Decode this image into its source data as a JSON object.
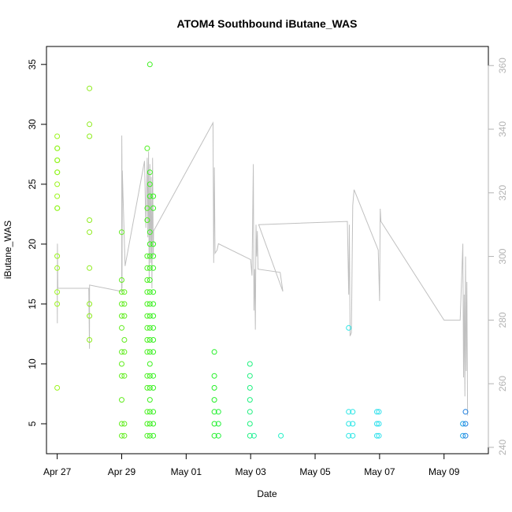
{
  "chart_data": {
    "type": "scatter",
    "title": "ATOM4 Southbound iButane_WAS",
    "xlabel": "Date",
    "ylabel": "iButane_WAS",
    "xlim": [
      "2016-04-26T16:00",
      "2016-05-10T09:00"
    ],
    "ylim": [
      2.5,
      36.5
    ],
    "y2lim": [
      238,
      366
    ],
    "x_ticks": [
      {
        "date": "2016-04-27",
        "label": "Apr 27"
      },
      {
        "date": "2016-04-29",
        "label": "Apr 29"
      },
      {
        "date": "2016-05-01",
        "label": "May 01"
      },
      {
        "date": "2016-05-03",
        "label": "May 03"
      },
      {
        "date": "2016-05-05",
        "label": "May 05"
      },
      {
        "date": "2016-05-07",
        "label": "May 07"
      },
      {
        "date": "2016-05-09",
        "label": "May 09"
      }
    ],
    "y_ticks": [
      5,
      10,
      15,
      20,
      25,
      30,
      35
    ],
    "y2_ticks": [
      240,
      260,
      280,
      300,
      320,
      340,
      360
    ],
    "grid": false,
    "legend": "none",
    "scatter_series": [
      {
        "color": "#9cf51e",
        "x": "2016-04-27T00:00",
        "y": [
          29,
          28,
          27,
          26,
          25,
          24,
          23,
          19,
          18,
          16,
          15,
          8
        ]
      },
      {
        "color": "#8ff51e",
        "x": "2016-04-27T00:05",
        "y": [
          28,
          27,
          26,
          23
        ]
      },
      {
        "color": "#8fec1e",
        "x": "2016-04-28T00:00",
        "y": [
          33,
          30,
          29,
          22,
          21,
          18,
          15,
          14,
          12
        ]
      },
      {
        "color": "#61ec1e",
        "x": "2016-04-29T00:00",
        "y": [
          21,
          17,
          16,
          15,
          14,
          13,
          11,
          10,
          9,
          7,
          5,
          4
        ]
      },
      {
        "color": "#61ec1e",
        "x": "2016-04-29T02:00",
        "y": [
          16,
          15,
          14,
          12,
          11,
          9,
          5,
          4
        ]
      },
      {
        "color": "#4ef01e",
        "x": "2016-04-29T19:00",
        "y": [
          28,
          23,
          22,
          19,
          18,
          17,
          16,
          15,
          14,
          13,
          12,
          11,
          9,
          8,
          6,
          5,
          4
        ]
      },
      {
        "color": "#3df01e",
        "x": "2016-04-29T21:00",
        "y": [
          35,
          26,
          25,
          24,
          21,
          20,
          19,
          18,
          17,
          16,
          15,
          14,
          13,
          12,
          11,
          10,
          9,
          8,
          7,
          6,
          5,
          4
        ]
      },
      {
        "color": "#33f01e",
        "x": "2016-04-29T23:30",
        "y": [
          24,
          23,
          20,
          19,
          18,
          16,
          15,
          14,
          13,
          12,
          11,
          9,
          8,
          6,
          5,
          4
        ]
      },
      {
        "color": "#22f025",
        "x": "2016-05-01T21:00",
        "y": [
          11,
          9,
          8,
          7,
          6,
          5,
          4
        ]
      },
      {
        "color": "#22f03b",
        "x": "2016-05-02T00:00",
        "y": [
          6,
          5,
          4
        ]
      },
      {
        "color": "#1ef07f",
        "x": "2016-05-02T23:30",
        "y": [
          10,
          9,
          8,
          7,
          6,
          5,
          4
        ]
      },
      {
        "color": "#1ef09d",
        "x": "2016-05-03T02:30",
        "y": [
          4
        ]
      },
      {
        "color": "#1ef0c4",
        "x": "2016-05-03T22:30",
        "y": [
          4
        ]
      },
      {
        "color": "#2ae6e6",
        "x": "2016-05-06T01:00",
        "y": [
          13,
          6,
          5,
          4
        ]
      },
      {
        "color": "#2ae6e6",
        "x": "2016-05-06T04:00",
        "y": [
          6,
          5,
          4
        ]
      },
      {
        "color": "#2ae0ec",
        "x": "2016-05-06T22:00",
        "y": [
          6,
          5,
          4
        ]
      },
      {
        "color": "#2ae0ec",
        "x": "2016-05-06T23:30",
        "y": [
          6,
          5,
          4
        ]
      },
      {
        "color": "#1ea6e6",
        "x": "2016-05-09T14:00",
        "y": [
          5,
          4
        ]
      },
      {
        "color": "#1e7fe0",
        "x": "2016-05-09T16:00",
        "y": [
          6,
          5,
          4
        ]
      }
    ],
    "line_series": {
      "color": "#c0c0c0",
      "axis": "right",
      "points": [
        [
          "2016-04-27T00:00",
          290
        ],
        [
          "2016-04-27T00:05",
          279
        ],
        [
          "2016-04-27T00:10",
          304
        ],
        [
          "2016-04-27T00:30",
          290
        ],
        [
          "2016-04-27T23:30",
          290
        ],
        [
          "2016-04-28T00:00",
          271
        ],
        [
          "2016-04-28T00:05",
          291
        ],
        [
          "2016-04-29T00:00",
          289
        ],
        [
          "2016-04-29T00:05",
          338
        ],
        [
          "2016-04-29T00:10",
          331
        ],
        [
          "2016-04-29T00:15",
          290
        ],
        [
          "2016-04-29T00:30",
          327
        ],
        [
          "2016-04-29T01:00",
          319
        ],
        [
          "2016-04-29T02:30",
          297
        ],
        [
          "2016-04-29T17:00",
          330
        ],
        [
          "2016-04-29T18:00",
          309
        ],
        [
          "2016-04-29T19:00",
          331
        ],
        [
          "2016-04-29T19:30",
          306
        ],
        [
          "2016-04-29T20:00",
          333
        ],
        [
          "2016-04-29T20:30",
          292
        ],
        [
          "2016-04-29T21:00",
          329
        ],
        [
          "2016-04-29T21:30",
          298
        ],
        [
          "2016-04-29T22:00",
          325
        ],
        [
          "2016-04-29T22:30",
          290
        ],
        [
          "2016-04-29T23:00",
          331
        ],
        [
          "2016-04-29T23:30",
          300
        ],
        [
          "2016-04-29T23:45",
          308
        ],
        [
          "2016-05-01T20:00",
          342
        ],
        [
          "2016-05-01T20:30",
          298
        ],
        [
          "2016-05-01T21:00",
          328
        ],
        [
          "2016-05-01T21:30",
          301
        ],
        [
          "2016-05-01T23:00",
          302
        ],
        [
          "2016-05-02T00:00",
          304
        ],
        [
          "2016-05-03T00:00",
          299
        ],
        [
          "2016-05-03T01:00",
          294
        ],
        [
          "2016-05-03T02:00",
          329
        ],
        [
          "2016-05-03T02:30",
          283
        ],
        [
          "2016-05-03T03:00",
          296
        ],
        [
          "2016-05-03T03:30",
          277
        ],
        [
          "2016-05-03T04:00",
          310
        ],
        [
          "2016-05-03T04:30",
          300
        ],
        [
          "2016-05-03T05:00",
          308
        ],
        [
          "2016-05-03T05:30",
          296
        ],
        [
          "2016-05-03T22:00",
          295
        ],
        [
          "2016-05-04T00:00",
          289
        ],
        [
          "2016-05-03T06:00",
          310
        ],
        [
          "2016-05-06T00:00",
          311
        ],
        [
          "2016-05-06T01:00",
          288
        ],
        [
          "2016-05-06T01:30",
          310
        ],
        [
          "2016-05-06T02:00",
          275
        ],
        [
          "2016-05-06T03:00",
          276
        ],
        [
          "2016-05-06T04:00",
          316
        ],
        [
          "2016-05-06T05:00",
          321
        ],
        [
          "2016-05-06T23:00",
          302
        ],
        [
          "2016-05-07T00:00",
          286
        ],
        [
          "2016-05-07T00:30",
          315
        ],
        [
          "2016-05-07T01:00",
          311
        ],
        [
          "2016-05-09T00:00",
          280
        ],
        [
          "2016-05-09T12:00",
          280
        ],
        [
          "2016-05-09T14:00",
          304
        ],
        [
          "2016-05-09T14:30",
          262
        ],
        [
          "2016-05-09T15:00",
          288
        ],
        [
          "2016-05-09T15:30",
          256
        ],
        [
          "2016-05-09T16:00",
          300
        ],
        [
          "2016-05-09T16:30",
          264
        ],
        [
          "2016-05-09T17:00",
          292
        ],
        [
          "2016-05-09T17:30",
          250
        ]
      ]
    }
  }
}
